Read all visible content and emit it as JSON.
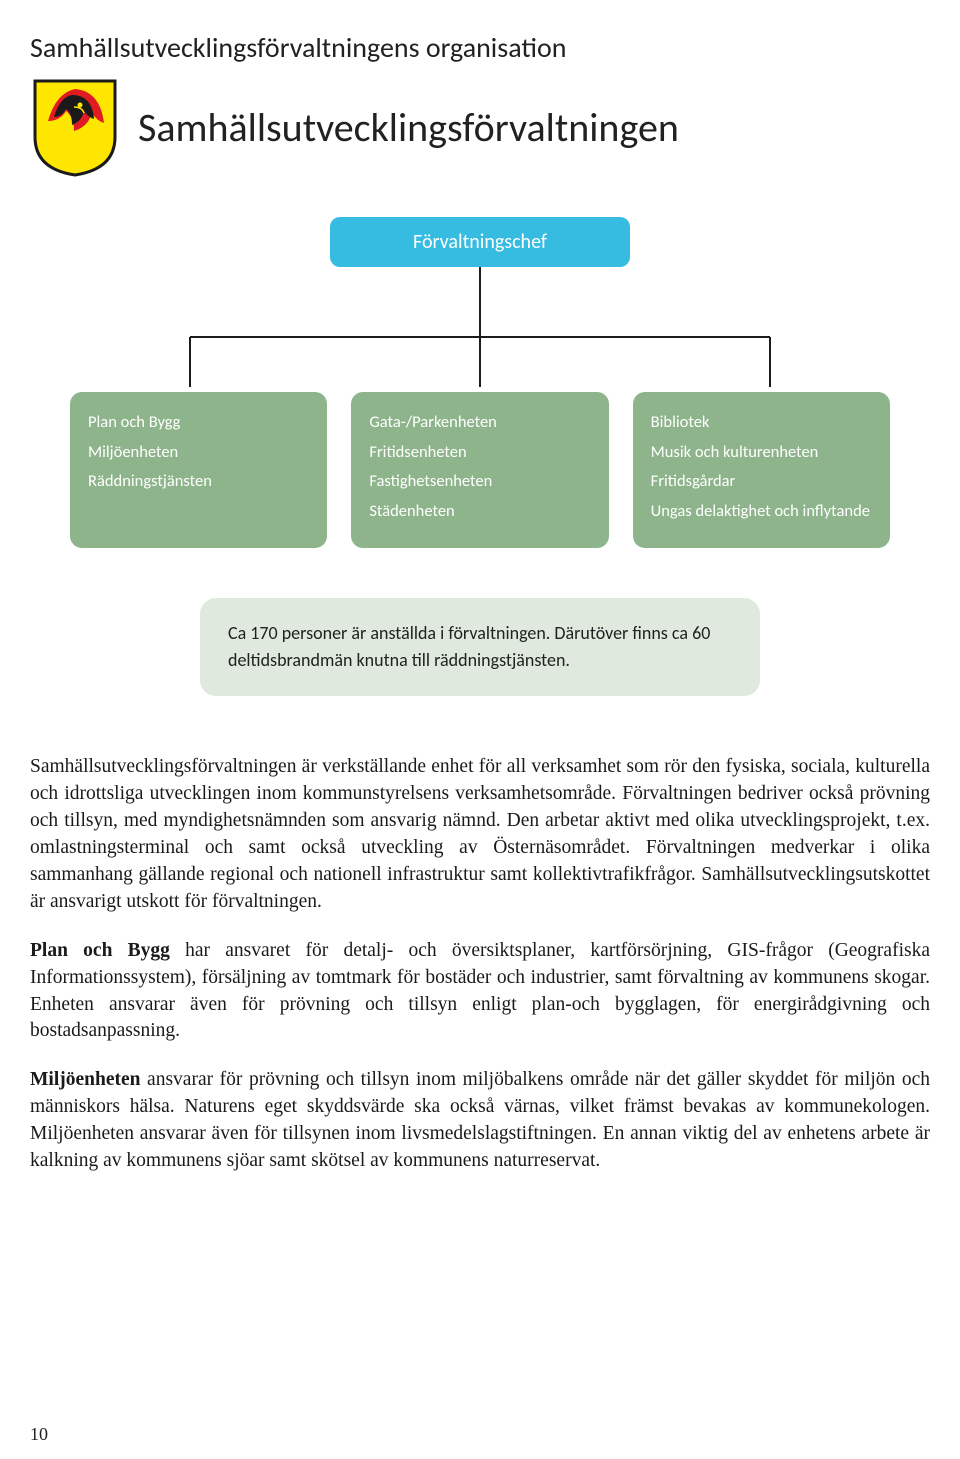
{
  "page_title": "Samhällsutvecklingsförvaltningens organisation",
  "main_heading": "Samhällsutvecklingsförvaltningen",
  "colors": {
    "chief_bg": "#36bbe1",
    "unit_bg": "#8db48b",
    "info_bg": "#dfe9de",
    "line": "#1c1c1c",
    "crest_yellow": "#ffe600",
    "crest_red": "#e11b22",
    "crest_black": "#1a1a1a"
  },
  "org": {
    "chief": "Förvaltningschef",
    "units": [
      [
        "Plan och Bygg",
        "Miljöenheten",
        "Räddningstjänsten"
      ],
      [
        "Gata-/Parkenheten",
        "Fritidsenheten",
        "Fastighetsenheten",
        "Städenheten"
      ],
      [
        "Bibliotek",
        "Musik och kulturenheten",
        "Fritidsgårdar",
        "Ungas delaktighet och inflytande"
      ]
    ],
    "info": "Ca 170 personer är anställda i förvaltningen. Därutöver finns ca 60 deltidsbrandmän knutna till räddningstjänsten."
  },
  "paragraphs": [
    {
      "bold": null,
      "text": "Samhällsutvecklingsförvaltningen är verkställande enhet för all verksamhet som rör den fysiska, sociala, kulturella och idrottsliga utvecklingen inom kommunstyrelsens verksamhetsområde. Förvaltningen bedriver också prövning och tillsyn, med myndighetsnämnden som ansvarig nämnd. Den arbetar aktivt med olika utvecklingsprojekt, t.ex. omlastningsterminal och samt också utveckling av Östernäsområdet. Förvaltningen medverkar i olika sammanhang gällande regional och nationell infrastruktur samt kollektivtrafikfrågor. Samhällsutvecklingsutskottet är ansvarigt utskott för förvaltningen."
    },
    {
      "bold": "Plan och Bygg",
      "text": " har ansvaret för detalj- och översiktsplaner, kartförsörjning, GIS-frågor (Geografiska Informationssystem), försäljning av tomtmark för bostäder och industrier, samt förvaltning av kommunens skogar. Enheten ansvarar även för prövning och tillsyn enligt plan-och bygglagen, för energirådgivning och bostadsanpassning."
    },
    {
      "bold": "Miljöenheten",
      "text": " ansvarar för prövning och tillsyn inom miljöbalkens område när det gäller skyddet för miljön och människors hälsa. Naturens eget skyddsvärde ska också värnas, vilket främst bevakas av kommunekologen. Miljöenheten ansvarar även för tillsynen inom livsmedelslagstiftningen. En annan viktig del av enhetens arbete är kalkning av kommunens sjöar samt skötsel av kommunens naturreservat."
    }
  ],
  "page_number": "10"
}
